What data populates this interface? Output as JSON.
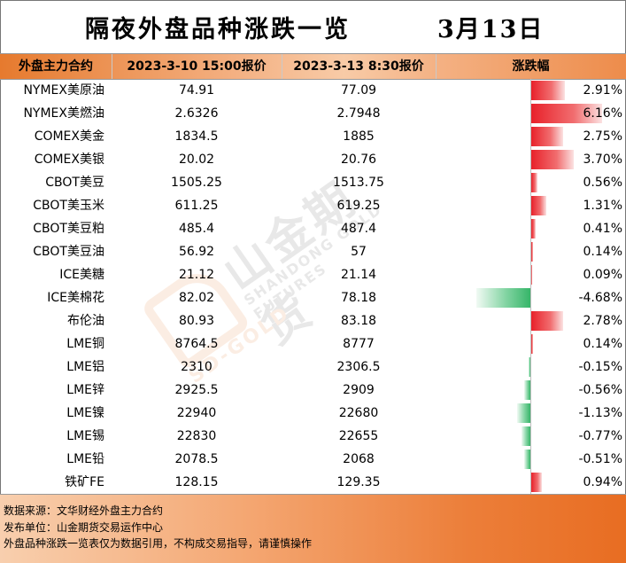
{
  "title": "隔夜外盘品种涨跌一览",
  "date": "3月13日",
  "headers": [
    "外盘主力合约",
    "2023-3-10 15:00报价",
    "2023-3-13 8:30报价",
    "涨跌幅"
  ],
  "rows": [
    {
      "name": "NYMEX美原油",
      "p1": "74.91",
      "p2": "77.09",
      "pct": "2.91%",
      "change": 2.91
    },
    {
      "name": "NYMEX美燃油",
      "p1": "2.6326",
      "p2": "2.7948",
      "pct": "6.16%",
      "change": 6.16
    },
    {
      "name": "COMEX美金",
      "p1": "1834.5",
      "p2": "1885",
      "pct": "2.75%",
      "change": 2.75
    },
    {
      "name": "COMEX美银",
      "p1": "20.02",
      "p2": "20.76",
      "pct": "3.70%",
      "change": 3.7
    },
    {
      "name": "CBOT美豆",
      "p1": "1505.25",
      "p2": "1513.75",
      "pct": "0.56%",
      "change": 0.56
    },
    {
      "name": "CBOT美玉米",
      "p1": "611.25",
      "p2": "619.25",
      "pct": "1.31%",
      "change": 1.31
    },
    {
      "name": "CBOT美豆粕",
      "p1": "485.4",
      "p2": "487.4",
      "pct": "0.41%",
      "change": 0.41
    },
    {
      "name": "CBOT美豆油",
      "p1": "56.92",
      "p2": "57",
      "pct": "0.14%",
      "change": 0.14
    },
    {
      "name": "ICE美糖",
      "p1": "21.12",
      "p2": "21.14",
      "pct": "0.09%",
      "change": 0.09
    },
    {
      "name": "ICE美棉花",
      "p1": "82.02",
      "p2": "78.18",
      "pct": "-4.68%",
      "change": -4.68
    },
    {
      "name": "布伦油",
      "p1": "80.93",
      "p2": "83.18",
      "pct": "2.78%",
      "change": 2.78
    },
    {
      "name": "LME铜",
      "p1": "8764.5",
      "p2": "8777",
      "pct": "0.14%",
      "change": 0.14
    },
    {
      "name": "LME铝",
      "p1": "2310",
      "p2": "2306.5",
      "pct": "-0.15%",
      "change": -0.15
    },
    {
      "name": "LME锌",
      "p1": "2925.5",
      "p2": "2909",
      "pct": "-0.56%",
      "change": -0.56
    },
    {
      "name": "LME镍",
      "p1": "22940",
      "p2": "22680",
      "pct": "-1.13%",
      "change": -1.13
    },
    {
      "name": "LME锡",
      "p1": "22830",
      "p2": "22655",
      "pct": "-0.77%",
      "change": -0.77
    },
    {
      "name": "LME铅",
      "p1": "2078.5",
      "p2": "2068",
      "pct": "-0.51%",
      "change": -0.51
    },
    {
      "name": "铁矿FE",
      "p1": "128.15",
      "p2": "129.35",
      "pct": "0.94%",
      "change": 0.94
    }
  ],
  "footer": {
    "source": "数据来源：文华财经外盘主力合约",
    "publisher": "发布单位：山金期货交易运作中心",
    "disclaimer": "外盘品种涨跌一览表仅为数据引用，不构成交易指导，请谨慎操作"
  },
  "watermark": {
    "cn": "山金期货",
    "en": "SHANDONG GOLD FUTURES",
    "sd": "SD-GOLD"
  },
  "colors": {
    "up": "#e8212a",
    "down": "#36b569",
    "accent": "#e67a2e"
  }
}
